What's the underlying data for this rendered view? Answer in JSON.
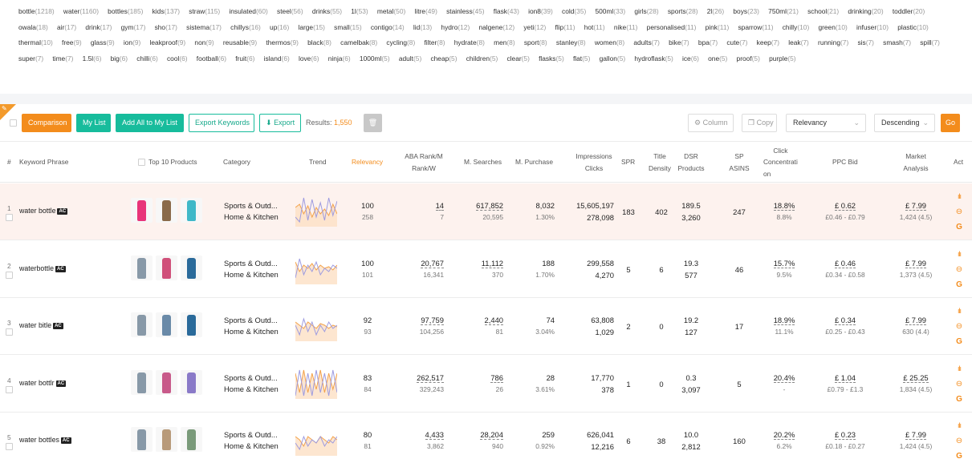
{
  "keywords": [
    {
      "w": "bottle",
      "n": "(1218)"
    },
    {
      "w": "water",
      "n": "(1160)"
    },
    {
      "w": "bottles",
      "n": "(185)"
    },
    {
      "w": "kids",
      "n": "(137)"
    },
    {
      "w": "straw",
      "n": "(115)"
    },
    {
      "w": "insulated",
      "n": "(60)"
    },
    {
      "w": "steel",
      "n": "(56)"
    },
    {
      "w": "drinks",
      "n": "(55)"
    },
    {
      "w": "1l",
      "n": "(53)"
    },
    {
      "w": "metal",
      "n": "(50)"
    },
    {
      "w": "litre",
      "n": "(49)"
    },
    {
      "w": "stainless",
      "n": "(45)"
    },
    {
      "w": "flask",
      "n": "(43)"
    },
    {
      "w": "ion8",
      "n": "(39)"
    },
    {
      "w": "cold",
      "n": "(35)"
    },
    {
      "w": "500ml",
      "n": "(33)"
    },
    {
      "w": "girls",
      "n": "(28)"
    },
    {
      "w": "sports",
      "n": "(28)"
    },
    {
      "w": "2l",
      "n": "(26)"
    },
    {
      "w": "boys",
      "n": "(23)"
    },
    {
      "w": "750ml",
      "n": "(21)"
    },
    {
      "w": "school",
      "n": "(21)"
    },
    {
      "w": "drinking",
      "n": "(20)"
    },
    {
      "w": "toddler",
      "n": "(20)"
    },
    {
      "w": "owala",
      "n": "(18)"
    },
    {
      "w": "air",
      "n": "(17)"
    },
    {
      "w": "drink",
      "n": "(17)"
    },
    {
      "w": "gym",
      "n": "(17)"
    },
    {
      "w": "sho",
      "n": "(17)"
    },
    {
      "w": "sistema",
      "n": "(17)"
    },
    {
      "w": "chillys",
      "n": "(16)"
    },
    {
      "w": "up",
      "n": "(16)"
    },
    {
      "w": "large",
      "n": "(15)"
    },
    {
      "w": "small",
      "n": "(15)"
    },
    {
      "w": "contigo",
      "n": "(14)"
    },
    {
      "w": "lid",
      "n": "(13)"
    },
    {
      "w": "hydro",
      "n": "(12)"
    },
    {
      "w": "nalgene",
      "n": "(12)"
    },
    {
      "w": "yeti",
      "n": "(12)"
    },
    {
      "w": "flip",
      "n": "(11)"
    },
    {
      "w": "hot",
      "n": "(11)"
    },
    {
      "w": "nike",
      "n": "(11)"
    },
    {
      "w": "personalised",
      "n": "(11)"
    },
    {
      "w": "pink",
      "n": "(11)"
    },
    {
      "w": "sparrow",
      "n": "(11)"
    },
    {
      "w": "chilly",
      "n": "(10)"
    },
    {
      "w": "green",
      "n": "(10)"
    },
    {
      "w": "infuser",
      "n": "(10)"
    },
    {
      "w": "plastic",
      "n": "(10)"
    },
    {
      "w": "thermal",
      "n": "(10)"
    },
    {
      "w": "free",
      "n": "(9)"
    },
    {
      "w": "glass",
      "n": "(9)"
    },
    {
      "w": "ion",
      "n": "(9)"
    },
    {
      "w": "leakproof",
      "n": "(9)"
    },
    {
      "w": "non",
      "n": "(9)"
    },
    {
      "w": "reusable",
      "n": "(9)"
    },
    {
      "w": "thermos",
      "n": "(9)"
    },
    {
      "w": "black",
      "n": "(8)"
    },
    {
      "w": "camelbak",
      "n": "(8)"
    },
    {
      "w": "cycling",
      "n": "(8)"
    },
    {
      "w": "filter",
      "n": "(8)"
    },
    {
      "w": "hydrate",
      "n": "(8)"
    },
    {
      "w": "men",
      "n": "(8)"
    },
    {
      "w": "sport",
      "n": "(8)"
    },
    {
      "w": "stanley",
      "n": "(8)"
    },
    {
      "w": "women",
      "n": "(8)"
    },
    {
      "w": "adults",
      "n": "(7)"
    },
    {
      "w": "bike",
      "n": "(7)"
    },
    {
      "w": "bpa",
      "n": "(7)"
    },
    {
      "w": "cute",
      "n": "(7)"
    },
    {
      "w": "keep",
      "n": "(7)"
    },
    {
      "w": "leak",
      "n": "(7)"
    },
    {
      "w": "running",
      "n": "(7)"
    },
    {
      "w": "sis",
      "n": "(7)"
    },
    {
      "w": "smash",
      "n": "(7)"
    },
    {
      "w": "spill",
      "n": "(7)"
    },
    {
      "w": "super",
      "n": "(7)"
    },
    {
      "w": "time",
      "n": "(7)"
    },
    {
      "w": "1.5l",
      "n": "(6)"
    },
    {
      "w": "big",
      "n": "(6)"
    },
    {
      "w": "chilli",
      "n": "(6)"
    },
    {
      "w": "cool",
      "n": "(6)"
    },
    {
      "w": "football",
      "n": "(6)"
    },
    {
      "w": "fruit",
      "n": "(6)"
    },
    {
      "w": "island",
      "n": "(6)"
    },
    {
      "w": "love",
      "n": "(6)"
    },
    {
      "w": "ninja",
      "n": "(6)"
    },
    {
      "w": "1000ml",
      "n": "(5)"
    },
    {
      "w": "adult",
      "n": "(5)"
    },
    {
      "w": "cheap",
      "n": "(5)"
    },
    {
      "w": "children",
      "n": "(5)"
    },
    {
      "w": "clear",
      "n": "(5)"
    },
    {
      "w": "flasks",
      "n": "(5)"
    },
    {
      "w": "flat",
      "n": "(5)"
    },
    {
      "w": "gallon",
      "n": "(5)"
    },
    {
      "w": "hydroflask",
      "n": "(5)"
    },
    {
      "w": "ice",
      "n": "(6)"
    },
    {
      "w": "one",
      "n": "(5)"
    },
    {
      "w": "proof",
      "n": "(5)"
    },
    {
      "w": "purple",
      "n": "(5)"
    }
  ],
  "toolbar": {
    "comparison": "Comparison",
    "my_list": "My List",
    "add_all": "Add All to My List",
    "export_keywords": "Export Keywords",
    "export": "Export",
    "results_label": "Results:",
    "results_count": "1,550",
    "column": "Column",
    "copy": "Copy",
    "sort_field": "Relevancy",
    "sort_order": "Descending",
    "go": "Go"
  },
  "headers": {
    "num": "#",
    "phrase": "Keyword Phrase",
    "top10": "Top 10 Products",
    "category": "Category",
    "trend": "Trend",
    "relevancy": "Relevancy",
    "aba_1": "ABA Rank/M",
    "aba_2": "Rank/W",
    "msearch": "M. Searches",
    "mpurchase": "M. Purchase",
    "imp_1": "Impressions",
    "imp_2": "Clicks",
    "spr": "SPR",
    "td_1": "Title",
    "td_2": "Density",
    "dsr_1": "DSR",
    "dsr_2": "Products",
    "sp_1": "SP",
    "sp_2": "ASINS",
    "cc_1": "Click",
    "cc_2": "Concentrati",
    "cc_3": "on",
    "ppc": "PPC Bid",
    "ma_1": "Market",
    "ma_2": "Analysis",
    "act": "Act"
  },
  "rows": [
    {
      "num": "1",
      "phrase": "water bottle",
      "ac": "AC",
      "cat1": "Sports & Outd...",
      "cat2": "Home & Kitchen",
      "rel": "100",
      "rel_sub": "258",
      "aba_m": "14",
      "aba_w": "7",
      "msearch": "617,852",
      "msearch_sub": "20,595",
      "mpurchase": "8,032",
      "mpurchase_pct": "1.30%",
      "impressions": "15,605,197",
      "clicks": "278,098",
      "spr": "183",
      "td": "402",
      "dsr": "189.5",
      "products": "3,260",
      "sp": "247",
      "cc": "18.8%",
      "cc_sub": "8.8%",
      "ppc": "£ 0.62",
      "ppc_range": "£0.46 - £0.79",
      "ma": "£ 7.99",
      "ma_sub": "1,424 (4.5)",
      "thumbs": [
        "#e8357a",
        "#8a6a4a",
        "#3fb8c8"
      ],
      "trend_a": [
        0.3,
        0.15,
        0.9,
        0.2,
        0.85,
        0.3,
        0.75,
        0.2,
        0.9,
        0.35,
        0.8
      ],
      "trend_b": [
        0.6,
        0.7,
        0.4,
        0.65,
        0.3,
        0.6,
        0.4,
        0.55,
        0.35,
        0.7,
        0.4
      ]
    },
    {
      "num": "2",
      "phrase": "waterbottle",
      "ac": "AC",
      "cat1": "Sports & Outd...",
      "cat2": "Home & Kitchen",
      "rel": "100",
      "rel_sub": "101",
      "aba_m": "20,767",
      "aba_w": "16,341",
      "msearch": "11,112",
      "msearch_sub": "370",
      "mpurchase": "188",
      "mpurchase_pct": "1.70%",
      "impressions": "299,558",
      "clicks": "4,270",
      "spr": "5",
      "td": "6",
      "dsr": "19.3",
      "products": "577",
      "sp": "46",
      "cc": "15.7%",
      "cc_sub": "9.5%",
      "ppc": "£ 0.46",
      "ppc_range": "£0.34 - £0.58",
      "ma": "£ 7.99",
      "ma_sub": "1,373 (4.5)",
      "thumbs": [
        "#8899a8",
        "#d0507a",
        "#2a6a9a"
      ],
      "trend_a": [
        0.2,
        0.8,
        0.3,
        0.6,
        0.4,
        0.7,
        0.3,
        0.5,
        0.4,
        0.6,
        0.5
      ],
      "trend_b": [
        0.7,
        0.4,
        0.6,
        0.5,
        0.65,
        0.45,
        0.6,
        0.5,
        0.55,
        0.45,
        0.6
      ]
    },
    {
      "num": "3",
      "phrase": "water bitle",
      "ac": "AC",
      "cat1": "Sports & Outd...",
      "cat2": "Home & Kitchen",
      "rel": "92",
      "rel_sub": "93",
      "aba_m": "97,759",
      "aba_w": "104,256",
      "msearch": "2,440",
      "msearch_sub": "81",
      "mpurchase": "74",
      "mpurchase_pct": "3.04%",
      "impressions": "63,808",
      "clicks": "1,029",
      "spr": "2",
      "td": "0",
      "dsr": "19.2",
      "products": "127",
      "sp": "17",
      "cc": "18.9%",
      "cc_sub": "11.1%",
      "ppc": "£ 0.34",
      "ppc_range": "£0.25 - £0.43",
      "ma": "£ 7.99",
      "ma_sub": "630 (4.4)",
      "thumbs": [
        "#8899a8",
        "#6a8aa8",
        "#2a6a9a"
      ],
      "trend_a": [
        0.5,
        0.2,
        0.7,
        0.3,
        0.6,
        0.2,
        0.5,
        0.3,
        0.6,
        0.4,
        0.5
      ],
      "trend_b": [
        0.6,
        0.5,
        0.4,
        0.6,
        0.5,
        0.4,
        0.55,
        0.5,
        0.4,
        0.5,
        0.45
      ]
    },
    {
      "num": "4",
      "phrase": "water bottlr",
      "ac": "AC",
      "cat1": "Sports & Outd...",
      "cat2": "Home & Kitchen",
      "rel": "83",
      "rel_sub": "84",
      "aba_m": "262,517",
      "aba_w": "329,243",
      "msearch": "786",
      "msearch_sub": "26",
      "mpurchase": "28",
      "mpurchase_pct": "3.61%",
      "impressions": "17,770",
      "clicks": "378",
      "spr": "1",
      "td": "0",
      "dsr": "0.3",
      "products": "3,097",
      "sp": "5",
      "cc": "20.4%",
      "cc_sub": "-",
      "ppc": "£ 1.04",
      "ppc_range": "£0.79 - £1.3",
      "ma": "£ 25.25",
      "ma_sub": "1,834 (4.5)",
      "thumbs": [
        "#8899a8",
        "#c85a8a",
        "#8a7ac8"
      ],
      "trend_a": [
        0.1,
        0.9,
        0.1,
        0.8,
        0.1,
        0.9,
        0.2,
        0.8,
        0.1,
        0.9,
        0.2
      ],
      "trend_b": [
        0.8,
        0.2,
        0.9,
        0.2,
        0.8,
        0.3,
        0.9,
        0.2,
        0.8,
        0.3,
        0.8
      ]
    },
    {
      "num": "5",
      "phrase": "water bottles",
      "ac": "AC",
      "cat1": "Sports & Outd...",
      "cat2": "Home & Kitchen",
      "rel": "80",
      "rel_sub": "81",
      "aba_m": "4,433",
      "aba_w": "3,862",
      "msearch": "28,204",
      "msearch_sub": "940",
      "mpurchase": "259",
      "mpurchase_pct": "0.92%",
      "impressions": "626,041",
      "clicks": "12,216",
      "spr": "6",
      "td": "38",
      "dsr": "10.0",
      "products": "2,812",
      "sp": "160",
      "cc": "20.2%",
      "cc_sub": "6.2%",
      "ppc": "£ 0.23",
      "ppc_range": "£0.18 - £0.27",
      "ma": "£ 7.99",
      "ma_sub": "1,424 (4.5)",
      "thumbs": [
        "#8899a8",
        "#b89a7a",
        "#7a9a7a"
      ],
      "trend_a": [
        0.4,
        0.2,
        0.6,
        0.3,
        0.5,
        0.4,
        0.6,
        0.3,
        0.5,
        0.4,
        0.6
      ],
      "trend_b": [
        0.6,
        0.5,
        0.3,
        0.6,
        0.5,
        0.4,
        0.6,
        0.5,
        0.4,
        0.6,
        0.5
      ]
    }
  ]
}
